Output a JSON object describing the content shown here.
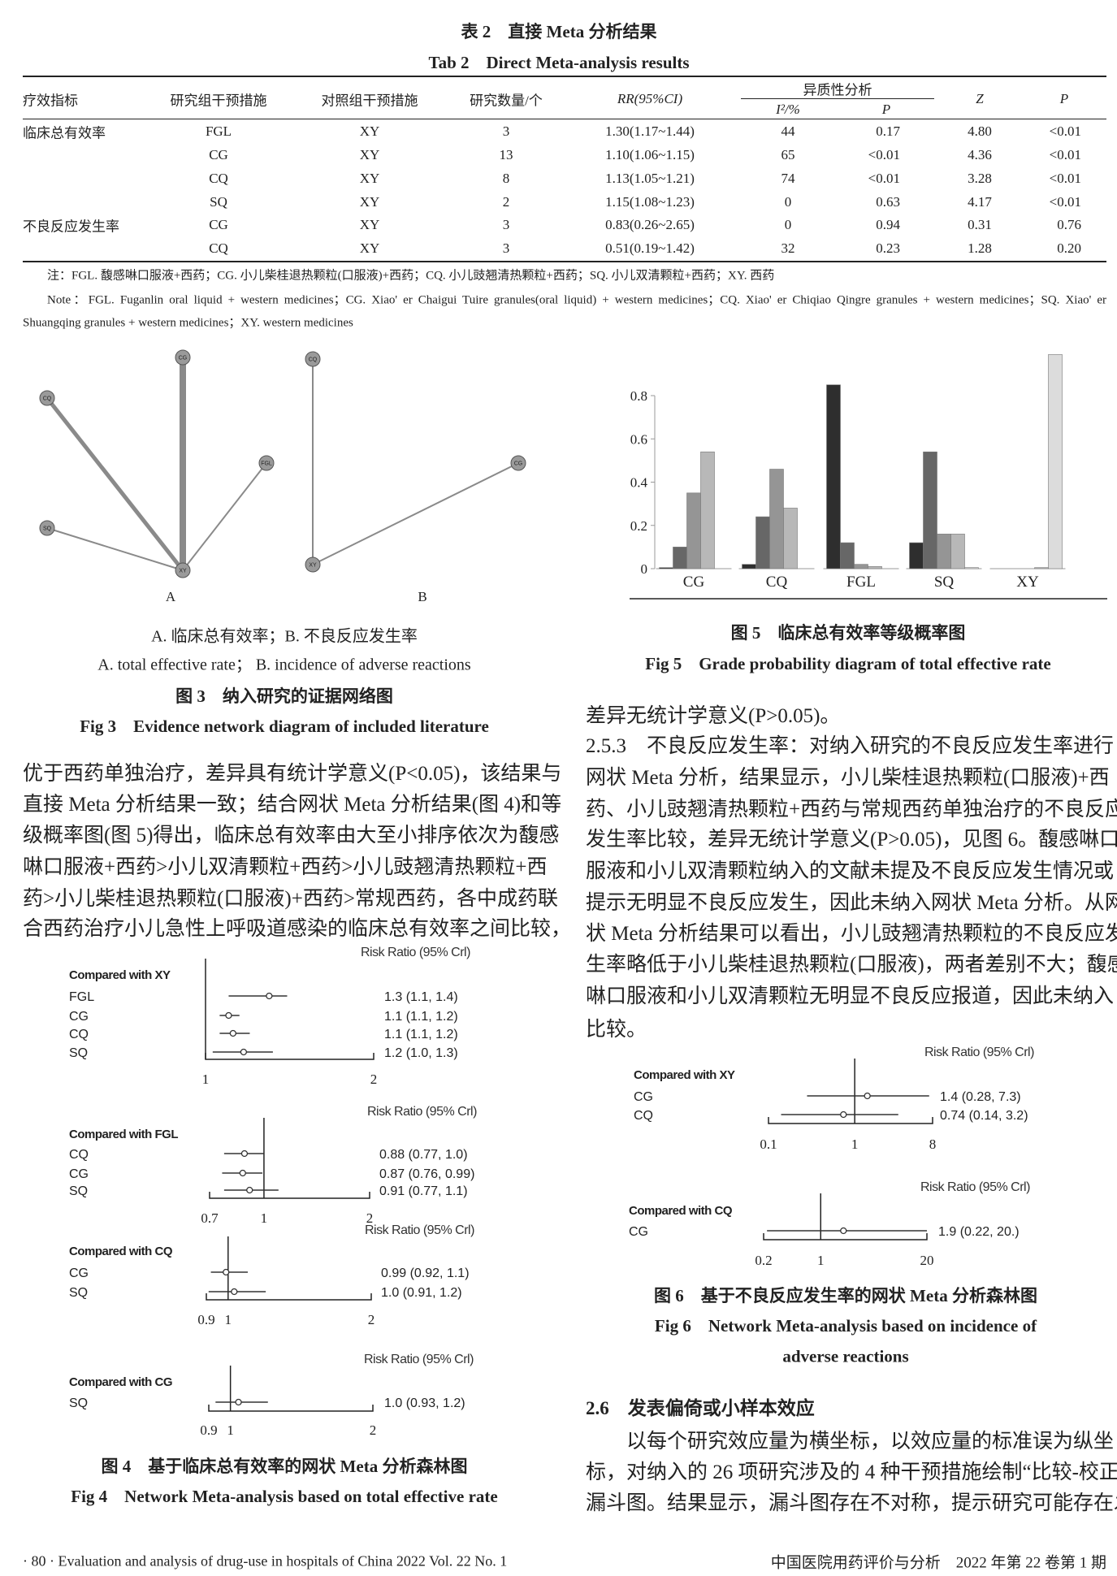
{
  "table": {
    "title_cn": "表 2　直接 Meta 分析结果",
    "title_en": "Tab 2　Direct Meta-analysis results",
    "headers": {
      "indicator": "疗效指标",
      "study_group": "研究组干预措施",
      "control_group": "对照组干预措施",
      "n_studies": "研究数量/个",
      "rr": "RR(95%CI)",
      "heterogeneity": "异质性分析",
      "i2": "I²/%",
      "p_het": "P",
      "z": "Z",
      "p": "P"
    },
    "rows": [
      {
        "indicator": "临床总有效率",
        "study": "FGL",
        "control": "XY",
        "n": "3",
        "rr": "1.30(1.17~1.44)",
        "i2": "44",
        "p_het": "0.17",
        "z": "4.80",
        "p": "<0.01"
      },
      {
        "indicator": "",
        "study": "CG",
        "control": "XY",
        "n": "13",
        "rr": "1.10(1.06~1.15)",
        "i2": "65",
        "p_het": "<0.01",
        "z": "4.36",
        "p": "<0.01"
      },
      {
        "indicator": "",
        "study": "CQ",
        "control": "XY",
        "n": "8",
        "rr": "1.13(1.05~1.21)",
        "i2": "74",
        "p_het": "<0.01",
        "z": "3.28",
        "p": "<0.01"
      },
      {
        "indicator": "",
        "study": "SQ",
        "control": "XY",
        "n": "2",
        "rr": "1.15(1.08~1.23)",
        "i2": "0",
        "p_het": "0.63",
        "z": "4.17",
        "p": "<0.01"
      },
      {
        "indicator": "不良反应发生率",
        "study": "CG",
        "control": "XY",
        "n": "3",
        "rr": "0.83(0.26~2.65)",
        "i2": "0",
        "p_het": "0.94",
        "z": "0.31",
        "p": "0.76"
      },
      {
        "indicator": "",
        "study": "CQ",
        "control": "XY",
        "n": "3",
        "rr": "0.51(0.19~1.42)",
        "i2": "32",
        "p_het": "0.23",
        "z": "1.28",
        "p": "0.20"
      }
    ],
    "notes": [
      "注：FGL. 馥感啉口服液+西药；CG. 小儿柴桂退热颗粒(口服液)+西药；CQ. 小儿豉翘清热颗粒+西药；SQ. 小儿双清颗粒+西药；XY. 西药",
      "Note：FGL. Fuganlin oral liquid + western medicines；CG. Xiao' er Chaigui Tuire granules(oral liquid) + western medicines；CQ. Xiao' er Chiqiao Qingre granules + western medicines；SQ. Xiao' er",
      "Shuangqing granules + western medicines；XY. western medicines"
    ]
  },
  "fig3": {
    "panel_a_label": "A",
    "panel_b_label": "B",
    "legend_cn": "A. 临床总有效率；B. 不良反应发生率",
    "legend_en": "A. total effective rate； B. incidence of adverse reactions",
    "caption_cn": "图 3　纳入研究的证据网络图",
    "caption_en": "Fig 3　Evidence network diagram of included literature",
    "network_a": {
      "nodes": [
        "CG",
        "CQ",
        "FGL",
        "SQ",
        "XY"
      ],
      "edges": [
        {
          "from": "CG",
          "to": "XY",
          "studies": 13
        },
        {
          "from": "CQ",
          "to": "XY",
          "studies": 8
        },
        {
          "from": "FGL",
          "to": "XY",
          "studies": 3
        },
        {
          "from": "SQ",
          "to": "XY",
          "studies": 2
        }
      ]
    },
    "network_b": {
      "nodes": [
        "CQ",
        "CG",
        "XY"
      ],
      "edges": [
        {
          "from": "CQ",
          "to": "XY",
          "studies": 3
        },
        {
          "from": "CG",
          "to": "XY",
          "studies": 3
        }
      ]
    }
  },
  "left_text": [
    "优于西药单独治疗，差异具有统计学意义(P<0.05)，该结果与",
    "直接 Meta 分析结果一致；结合网状 Meta 分析结果(图 4)和等",
    "级概率图(图 5)得出，临床总有效率由大至小排序依次为馥感",
    "啉口服液+西药>小儿双清颗粒+西药>小儿豉翘清热颗粒+西",
    "药>小儿柴桂退热颗粒(口服液)+西药>常规西药，各中成药联",
    "合西药治疗小儿急性上呼吸道感染的临床总有效率之间比较，"
  ],
  "fig4": {
    "caption_cn": "图 4　基于临床总有效率的网状 Meta 分析森林图",
    "caption_en": "Fig 4　Network Meta-analysis based on total effective rate"
  },
  "fig5": {
    "caption_cn": "图 5　临床总有效率等级概率图",
    "caption_en": "Fig 5　Grade probability diagram of total effective rate"
  },
  "fig6": {
    "caption_cn": "图 6　基于不良反应发生率的网状 Meta 分析森林图",
    "caption_en_1": "Fig 6　Network Meta-analysis based on incidence of",
    "caption_en_2": "adverse reactions"
  },
  "right_text": [
    "差异无统计学意义(P>0.05)。",
    "2.5.3　不良反应发生率：对纳入研究的不良反应发生率进行",
    "网状 Meta 分析，结果显示，小儿柴桂退热颗粒(口服液)+西",
    "药、小儿豉翘清热颗粒+西药与常规西药单独治疗的不良反应",
    "发生率比较，差异无统计学意义(P>0.05)，见图 6。馥感啉口",
    "服液和小儿双清颗粒纳入的文献未提及不良反应发生情况或",
    "提示无明显不良反应发生，因此未纳入网状 Meta 分析。从网",
    "状 Meta 分析结果可以看出，小儿豉翘清热颗粒的不良反应发",
    "生率略低于小儿柴桂退热颗粒(口服液)，两者差别不大；馥感",
    "啉口服液和小儿双清颗粒无明显不良反应报道，因此未纳入",
    "比较。"
  ],
  "section_26": {
    "heading": "2.6　发表偏倚或小样本效应",
    "lines": [
      "以每个研究效应量为横坐标，以效应量的标准误为纵坐",
      "标，对纳入的 26 项研究涉及的 4 种干预措施绘制“比较-校正”",
      "漏斗图。结果显示，漏斗图存在不对称，提示研究可能存在发"
    ]
  },
  "footer": {
    "left": "· 80 ·  Evaluation and analysis of drug-use in hospitals of China 2022 Vol. 22 No. 1",
    "right": "中国医院用药评价与分析　2022 年第 22 卷第 1 期"
  },
  "chart_data": [
    {
      "type": "bar",
      "figure": "fig5",
      "categories": [
        "CG",
        "CQ",
        "FGL",
        "SQ",
        "XY"
      ],
      "series": [
        {
          "values": [
            0.005,
            0.02,
            0.85,
            0.12,
            0.0
          ],
          "color": "#2e2e2e"
        },
        {
          "values": [
            0.1,
            0.24,
            0.12,
            0.54,
            0.0
          ],
          "color": "#676767"
        },
        {
          "values": [
            0.35,
            0.46,
            0.02,
            0.16,
            0.0
          ],
          "color": "#959595"
        },
        {
          "values": [
            0.54,
            0.28,
            0.01,
            0.16,
            0.005
          ],
          "color": "#b8b8b8"
        },
        {
          "values": [
            0.0,
            0.0,
            0.0,
            0.005,
            0.99
          ],
          "color": "#dcdcdc"
        }
      ],
      "yticks": [
        "0",
        "0.2",
        "0.4",
        "0.6",
        "0.8"
      ],
      "ylim": [
        0,
        1.0
      ],
      "grid": false
    },
    {
      "type": "forest",
      "figure": "fig4",
      "scale": "log",
      "panels": [
        {
          "header": "Risk Ratio (95% Crl)",
          "comparator": "Compared with XY",
          "ticks": [
            "1",
            "2"
          ],
          "rows": [
            {
              "label": "FGL",
              "rr": 1.3,
              "lo": 1.1,
              "hi": 1.4,
              "text": "1.3 (1.1, 1.4)"
            },
            {
              "label": "CG",
              "rr": 1.1,
              "lo": 1.06,
              "hi": 1.15,
              "text": "1.1 (1.1, 1.2)"
            },
            {
              "label": "CQ",
              "rr": 1.12,
              "lo": 1.06,
              "hi": 1.2,
              "text": "1.1 (1.1, 1.2)"
            },
            {
              "label": "SQ",
              "rr": 1.17,
              "lo": 1.03,
              "hi": 1.32,
              "text": "1.2 (1.0, 1.3)"
            }
          ]
        },
        {
          "header": "Risk Ratio (95% Crl)",
          "comparator": "Compared with FGL",
          "ticks": [
            "0.7",
            "1",
            "2"
          ],
          "rows": [
            {
              "label": "CQ",
              "rr": 0.88,
              "lo": 0.77,
              "hi": 1.0,
              "text": "0.88 (0.77, 1.0)"
            },
            {
              "label": "CG",
              "rr": 0.87,
              "lo": 0.76,
              "hi": 0.99,
              "text": "0.87 (0.76, 0.99)"
            },
            {
              "label": "SQ",
              "rr": 0.91,
              "lo": 0.77,
              "hi": 1.1,
              "text": "0.91 (0.77, 1.1)"
            }
          ]
        },
        {
          "header": "Risk Ratio (95% Crl)",
          "comparator": "Compared with CQ",
          "ticks": [
            "0.9",
            "1",
            "2"
          ],
          "rows": [
            {
              "label": "CG",
              "rr": 0.99,
              "lo": 0.92,
              "hi": 1.1,
              "text": "0.99 (0.92, 1.1)"
            },
            {
              "label": "SQ",
              "rr": 1.03,
              "lo": 0.91,
              "hi": 1.2,
              "text": "1.0 (0.91, 1.2)"
            }
          ]
        },
        {
          "header": "Risk Ratio (95% Crl)",
          "comparator": "Compared with CG",
          "ticks": [
            "0.9",
            "1",
            "2"
          ],
          "rows": [
            {
              "label": "SQ",
              "rr": 1.04,
              "lo": 0.93,
              "hi": 1.2,
              "text": "1.0 (0.93, 1.2)"
            }
          ]
        }
      ]
    },
    {
      "type": "forest",
      "figure": "fig6",
      "scale": "log",
      "panels": [
        {
          "header": "Risk Ratio (95% Crl)",
          "comparator": "Compared with XY",
          "ticks": [
            "0.1",
            "1",
            "8"
          ],
          "rows": [
            {
              "label": "CG",
              "rr": 1.4,
              "lo": 0.28,
              "hi": 7.3,
              "text": "1.4 (0.28, 7.3)"
            },
            {
              "label": "CQ",
              "rr": 0.74,
              "lo": 0.14,
              "hi": 3.2,
              "text": "0.74 (0.14, 3.2)"
            }
          ]
        },
        {
          "header": "Risk Ratio (95% Crl)",
          "comparator": "Compared with CQ",
          "ticks": [
            "0.2",
            "1",
            "20"
          ],
          "rows": [
            {
              "label": "CG",
              "rr": 1.9,
              "lo": 0.22,
              "hi": 20,
              "text": "1.9 (0.22,  20.)"
            }
          ]
        }
      ]
    }
  ]
}
